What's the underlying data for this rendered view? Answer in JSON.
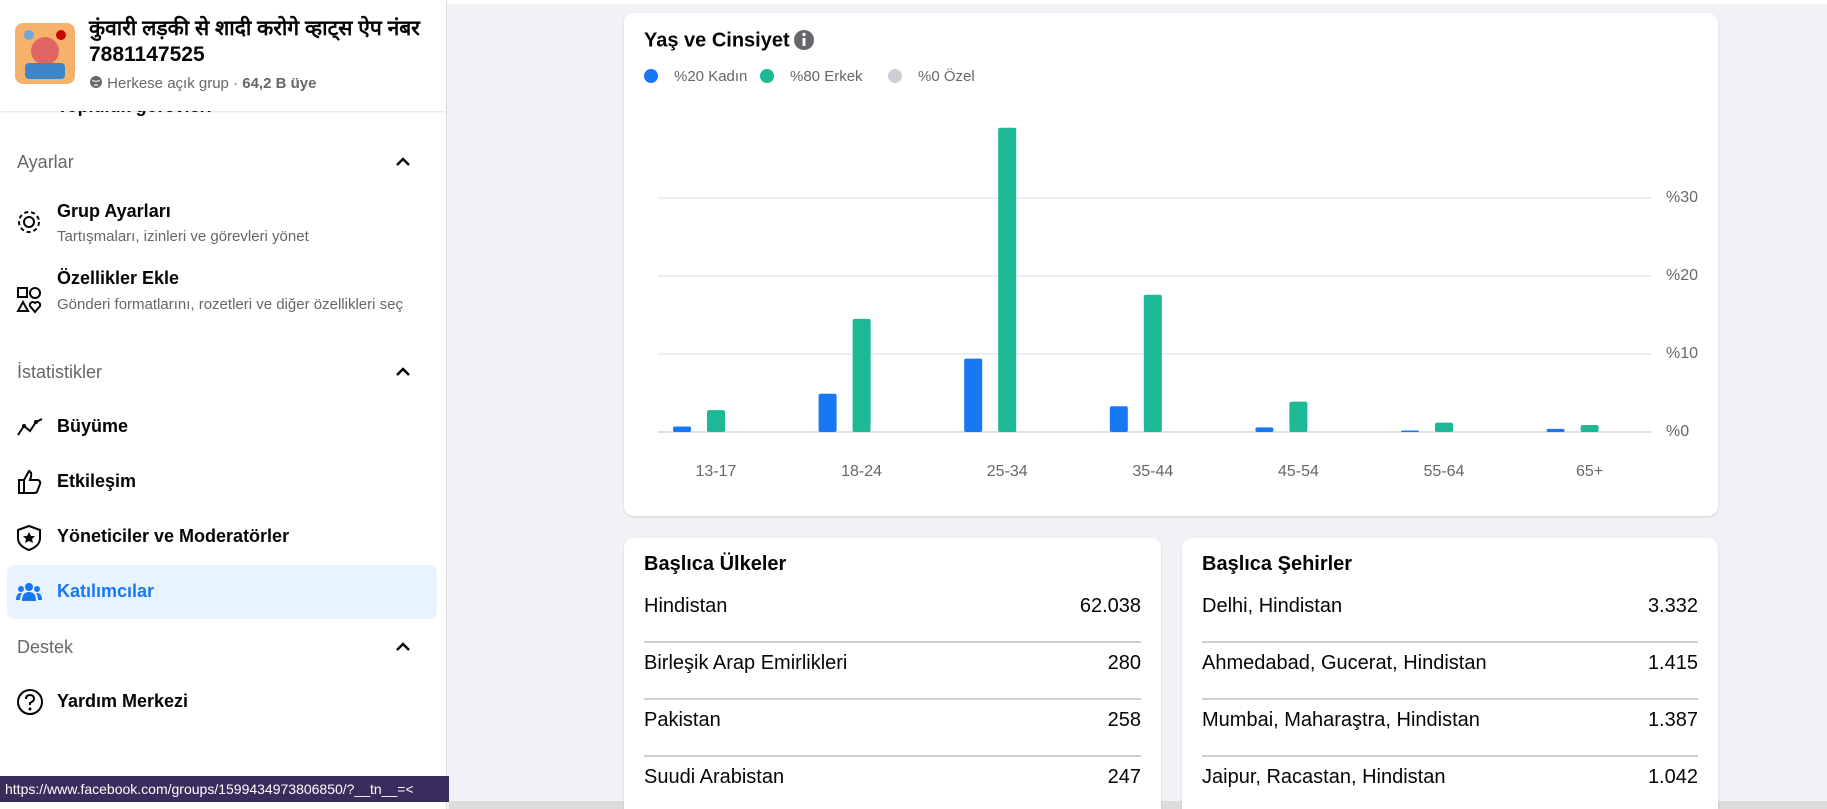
{
  "group": {
    "name": "कुंवारी लड़की से शादी करोगे व्हाट्स ऐप नंबर 7881147525",
    "privacy": "Herkese açık grup",
    "members": "64,2 B üye"
  },
  "sidebar": {
    "hidden_item": "Topluluk görevleri",
    "sections": [
      {
        "title": "Ayarlar",
        "items": [
          {
            "label": "Grup Ayarları",
            "description": "Tartışmaları, izinleri ve görevleri yönet"
          },
          {
            "label": "Özellikler Ekle",
            "description": "Gönderi formatlarını, rozetleri ve diğer özellikleri seç"
          }
        ]
      },
      {
        "title": "İstatistikler",
        "items": [
          {
            "label": "Büyüme"
          },
          {
            "label": "Etkileşim"
          },
          {
            "label": "Yöneticiler ve Moderatörler"
          },
          {
            "label": "Katılımcılar"
          }
        ]
      },
      {
        "title": "Destek",
        "items": [
          {
            "label": "Yardım Merkezi"
          }
        ]
      }
    ]
  },
  "status_url": "https://www.facebook.com/groups/1599434973806850/?__tn__=<",
  "chart_data": {
    "type": "bar",
    "title": "Yaş ve Cinsiyet",
    "categories": [
      "13-17",
      "18-24",
      "25-34",
      "35-44",
      "45-54",
      "55-64",
      "65+"
    ],
    "series": [
      {
        "name": "%20 Kadın",
        "color": "#1877f2",
        "values": [
          0.7,
          4.9,
          9.4,
          3.3,
          0.6,
          0.2,
          0.4
        ]
      },
      {
        "name": "%80 Erkek",
        "color": "#1db895",
        "values": [
          2.8,
          14.5,
          39,
          17.6,
          3.9,
          1.2,
          0.9
        ]
      },
      {
        "name": "%0 Özel",
        "color": "#ccd0d5",
        "values": [
          0,
          0,
          0,
          0,
          0,
          0,
          0
        ]
      }
    ],
    "ylim": [
      0,
      40
    ],
    "yticks": [
      {
        "value": 0,
        "label": "%0"
      },
      {
        "value": 10,
        "label": "%10"
      },
      {
        "value": 20,
        "label": "%20"
      },
      {
        "value": 30,
        "label": "%30"
      }
    ],
    "grid": true
  },
  "tables": [
    {
      "title": "Başlıca Ülkeler",
      "rows": [
        [
          "Hindistan",
          "62.038"
        ],
        [
          "Birleşik Arap Emirlikleri",
          "280"
        ],
        [
          "Pakistan",
          "258"
        ],
        [
          "Suudi Arabistan",
          "247"
        ]
      ]
    },
    {
      "title": "Başlıca Şehirler",
      "rows": [
        [
          "Delhi, Hindistan",
          "3.332"
        ],
        [
          "Ahmedabad, Gucerat, Hindistan",
          "1.415"
        ],
        [
          "Mumbai, Maharaştra, Hindistan",
          "1.387"
        ],
        [
          "Jaipur, Racastan, Hindistan",
          "1.042"
        ]
      ]
    }
  ]
}
